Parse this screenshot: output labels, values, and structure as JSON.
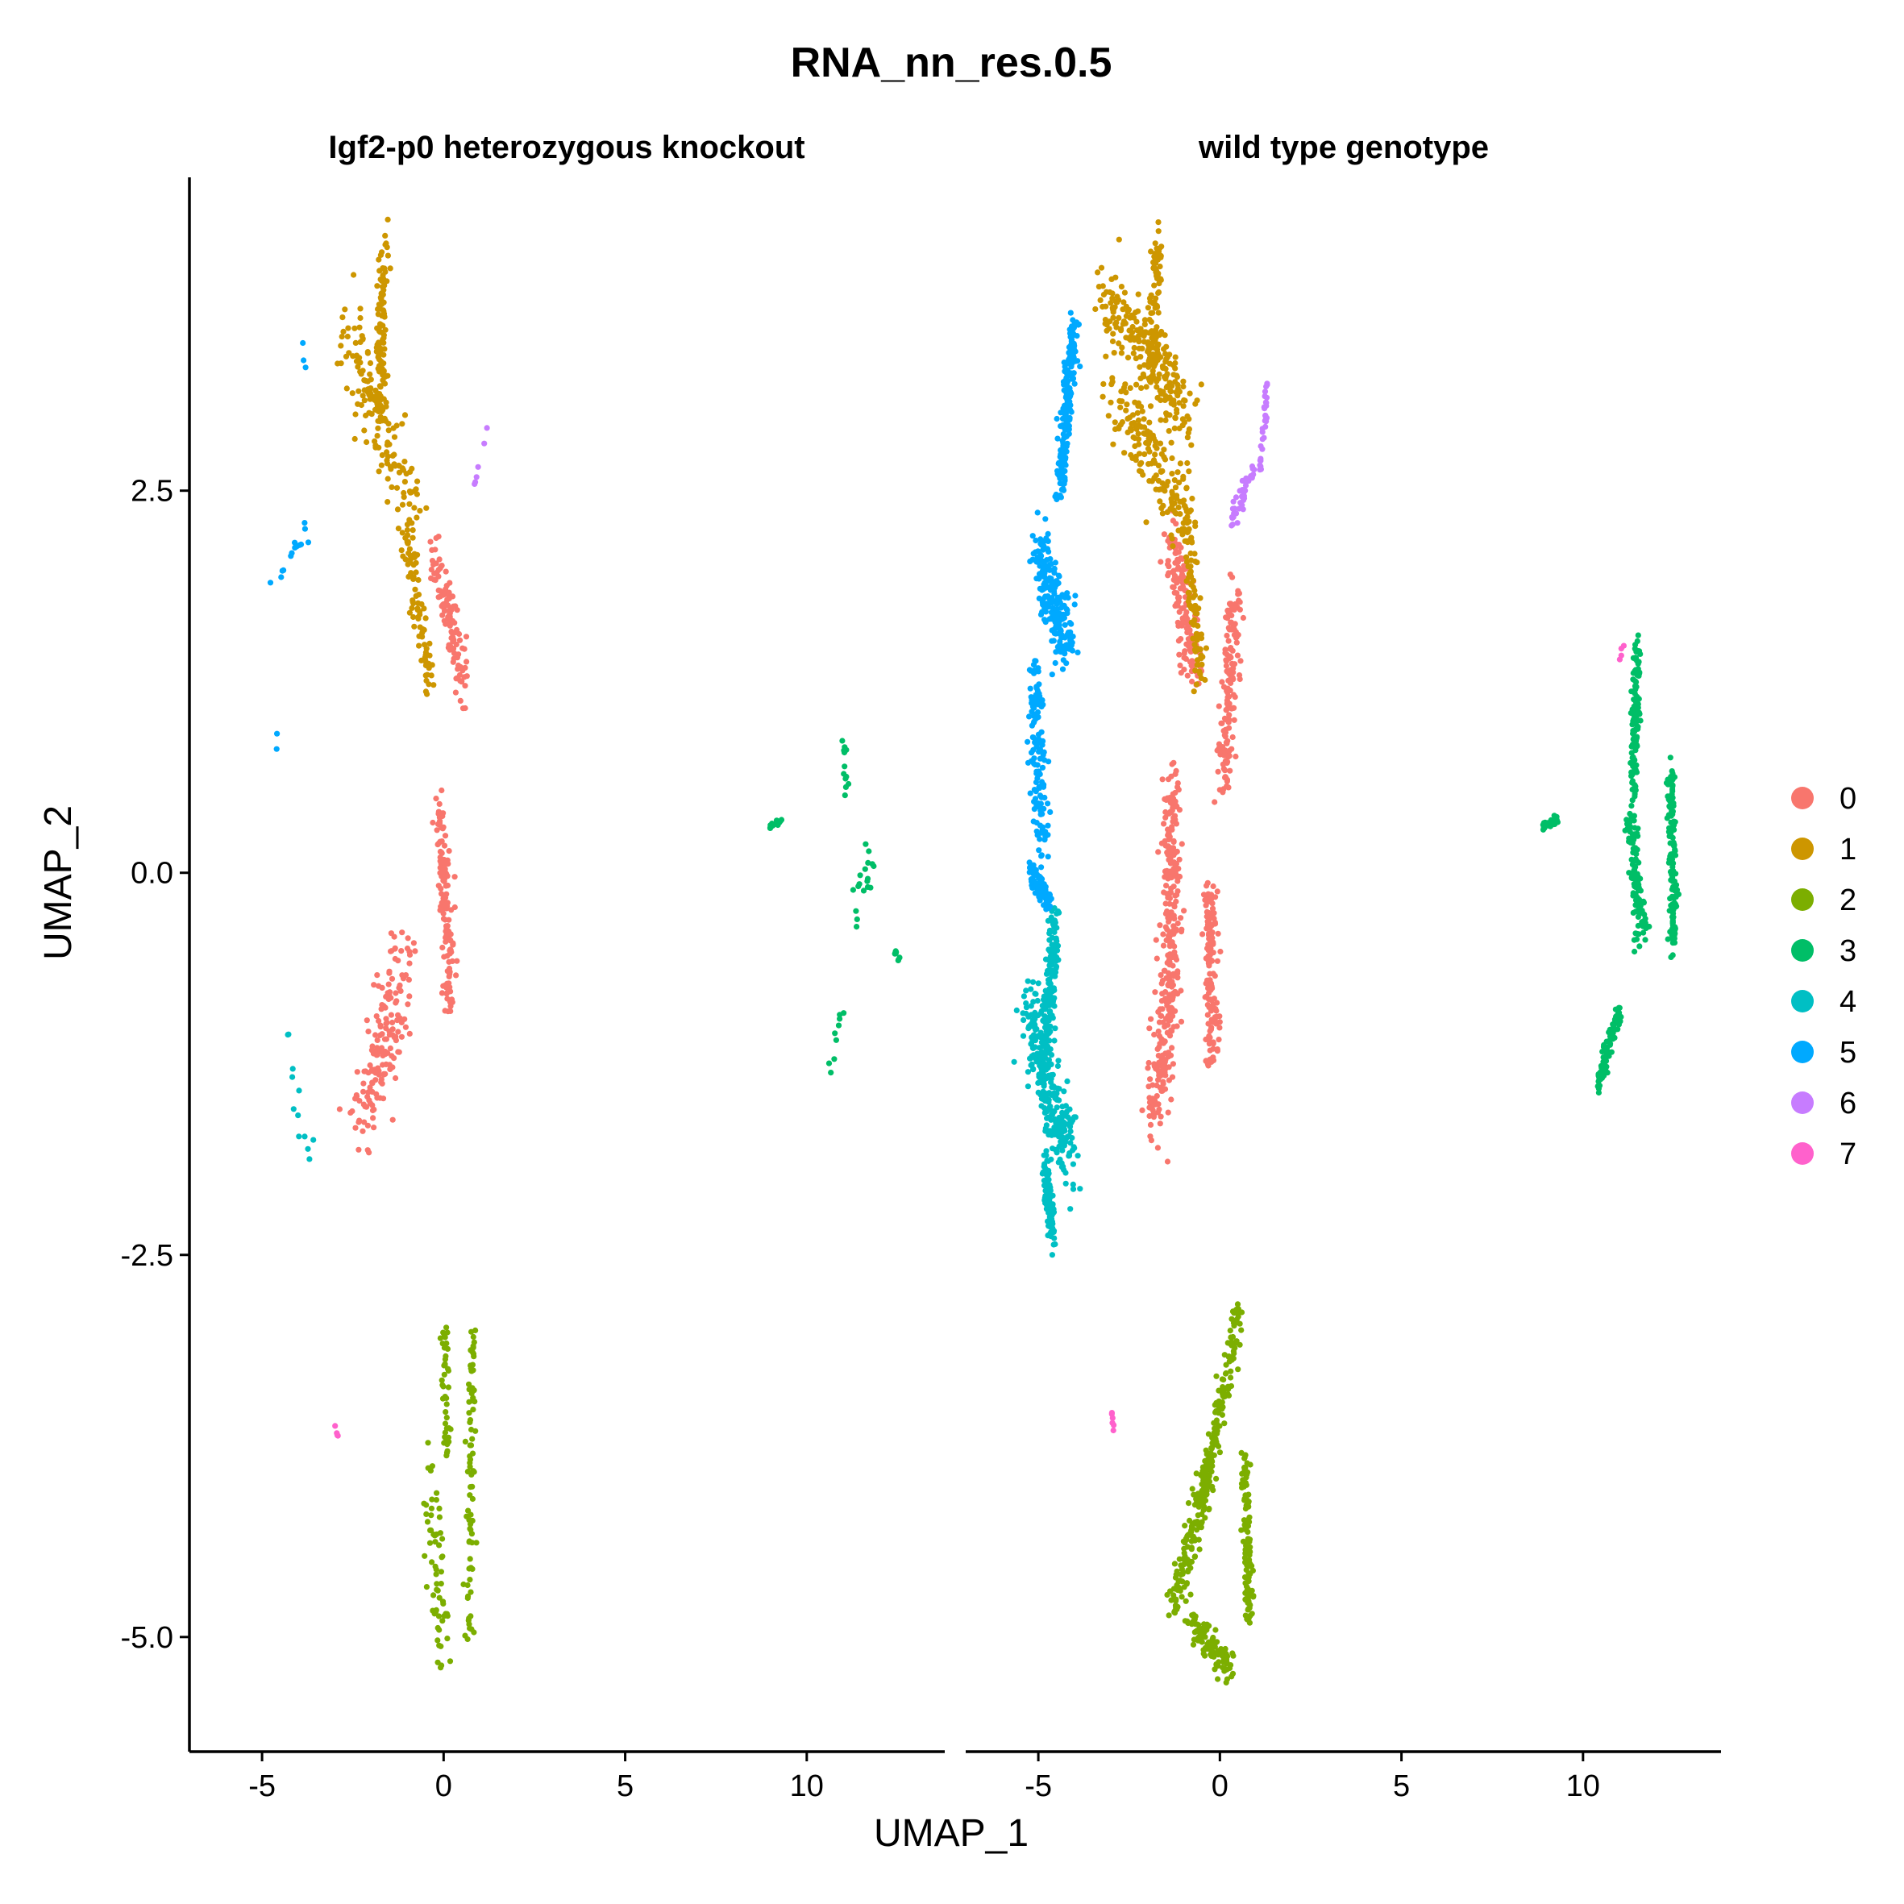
{
  "chart_data": {
    "type": "scatter",
    "title": "RNA_nn_res.0.5",
    "xlabel": "UMAP_1",
    "ylabel": "UMAP_2",
    "xlim": [
      -7,
      13.8
    ],
    "ylim": [
      -5.75,
      4.55
    ],
    "x_ticks": [
      -5,
      0,
      5,
      10
    ],
    "x_tick_labels": [
      "-5",
      "0",
      "5",
      "10"
    ],
    "y_ticks": [
      2.5,
      0.0,
      -2.5,
      -5.0
    ],
    "y_tick_labels": [
      "2.5",
      "0.0",
      "-2.5",
      "-5.0"
    ],
    "grid": false,
    "legend_position": "right",
    "legend": [
      {
        "label": "0",
        "color": "#F8766D"
      },
      {
        "label": "1",
        "color": "#CD9600"
      },
      {
        "label": "2",
        "color": "#7CAE00"
      },
      {
        "label": "3",
        "color": "#00BE67"
      },
      {
        "label": "4",
        "color": "#00BFC4"
      },
      {
        "label": "5",
        "color": "#00A9FF"
      },
      {
        "label": "6",
        "color": "#C77CFF"
      },
      {
        "label": "7",
        "color": "#FF61CC"
      }
    ],
    "panels": [
      {
        "title": "Igf2-p0 heterozygous knockout",
        "clusters": [
          {
            "name": "0",
            "n": 420,
            "segments": [
              [
                -0.3,
                2.1,
                0.6,
                1.2,
                0.35
              ],
              [
                -0.1,
                0.4,
                0.2,
                -0.8,
                0.35
              ],
              [
                -1.0,
                -0.6,
                -2.3,
                -1.6,
                0.8
              ]
            ]
          },
          {
            "name": "1",
            "n": 330,
            "segments": [
              [
                -1.6,
                4.2,
                -1.8,
                3.0,
                0.3
              ],
              [
                -2.6,
                3.5,
                -0.9,
                2.4,
                0.7
              ],
              [
                -1.0,
                2.3,
                -0.4,
                1.2,
                0.4
              ]
            ]
          },
          {
            "name": "2",
            "n": 190,
            "segments": [
              [
                0.0,
                -2.9,
                0.1,
                -3.8,
                0.2
              ],
              [
                0.8,
                -3.0,
                0.7,
                -5.0,
                0.2
              ],
              [
                -0.3,
                -3.8,
                -0.1,
                -5.1,
                0.5
              ]
            ]
          },
          {
            "name": "3",
            "n": 60,
            "segments": [
              [
                11.8,
                0.2,
                11.3,
                -0.4,
                0.35
              ],
              [
                11.0,
                -0.9,
                10.6,
                -1.3,
                0.2
              ],
              [
                11.0,
                0.9,
                11.1,
                0.5,
                0.1
              ],
              [
                8.9,
                0.3,
                9.3,
                0.35,
                0.05
              ],
              [
                12.4,
                -0.5,
                12.6,
                -0.6,
                0.05
              ]
            ]
          },
          {
            "name": "4",
            "n": 12,
            "segments": [
              [
                -4.2,
                -1.5,
                -3.3,
                -2.0,
                0.2
              ],
              [
                -4.3,
                -1.0,
                -4.0,
                -1.6,
                0.1
              ]
            ]
          },
          {
            "name": "5",
            "n": 20,
            "segments": [
              [
                -3.9,
                3.5,
                -3.8,
                3.2,
                0.08
              ],
              [
                -4.6,
                1.0,
                -4.6,
                0.7,
                0.05
              ],
              [
                -5.0,
                1.8,
                -3.8,
                2.2,
                0.2
              ]
            ]
          },
          {
            "name": "6",
            "n": 6,
            "segments": [
              [
                0.6,
                2.3,
                1.3,
                3.0,
                0.05
              ]
            ]
          },
          {
            "name": "7",
            "n": 4,
            "segments": [
              [
                -3.0,
                -3.6,
                -2.9,
                -3.7,
                0.02
              ]
            ]
          }
        ]
      },
      {
        "title": "wild type genotype",
        "clusters": [
          {
            "name": "0",
            "n": 780,
            "segments": [
              [
                -1.3,
                2.2,
                -0.7,
                1.3,
                0.5
              ],
              [
                0.4,
                1.8,
                0.1,
                0.6,
                0.4
              ],
              [
                -1.3,
                0.6,
                -1.4,
                -0.6,
                0.5
              ],
              [
                -1.3,
                -0.6,
                -1.8,
                -1.6,
                0.6
              ],
              [
                -0.3,
                -0.1,
                -0.2,
                -1.2,
                0.4
              ]
            ]
          },
          {
            "name": "1",
            "n": 560,
            "segments": [
              [
                -1.7,
                4.2,
                -1.9,
                3.2,
                0.3
              ],
              [
                -3.2,
                3.8,
                -0.8,
                3.0,
                0.5
              ],
              [
                -2.9,
                3.1,
                -0.8,
                2.3,
                0.6
              ],
              [
                -1.0,
                2.4,
                -0.5,
                1.2,
                0.3
              ]
            ]
          },
          {
            "name": "2",
            "n": 520,
            "segments": [
              [
                0.5,
                -2.9,
                -0.3,
                -3.9,
                0.3
              ],
              [
                -0.3,
                -3.9,
                -1.3,
                -4.8,
                0.35
              ],
              [
                0.7,
                -3.8,
                0.8,
                -4.9,
                0.2
              ],
              [
                -0.8,
                -4.9,
                0.3,
                -5.2,
                0.25
              ]
            ]
          },
          {
            "name": "3",
            "n": 520,
            "segments": [
              [
                11.5,
                1.5,
                11.4,
                0.5,
                0.2
              ],
              [
                12.4,
                0.7,
                12.5,
                -0.5,
                0.2
              ],
              [
                11.3,
                0.4,
                11.6,
                -0.4,
                0.3
              ],
              [
                11.0,
                -0.9,
                10.4,
                -1.4,
                0.15
              ],
              [
                8.9,
                0.3,
                9.3,
                0.35,
                0.05
              ]
            ]
          },
          {
            "name": "4",
            "n": 520,
            "segments": [
              [
                -4.5,
                -0.3,
                -4.9,
                -1.3,
                0.3
              ],
              [
                -5.3,
                -0.9,
                -4.2,
                -1.9,
                0.6
              ],
              [
                -4.8,
                -1.9,
                -4.6,
                -2.4,
                0.2
              ]
            ]
          },
          {
            "name": "5",
            "n": 640,
            "segments": [
              [
                -4.0,
                3.6,
                -4.4,
                2.5,
                0.3
              ],
              [
                -5.0,
                2.1,
                -4.2,
                1.5,
                0.5
              ],
              [
                -5.1,
                1.3,
                -4.9,
                0.2,
                0.4
              ],
              [
                -5.2,
                0.0,
                -4.7,
                -0.2,
                0.2
              ]
            ]
          },
          {
            "name": "6",
            "n": 70,
            "segments": [
              [
                1.3,
                3.2,
                1.1,
                2.6,
                0.1
              ],
              [
                0.9,
                2.6,
                0.3,
                2.3,
                0.15
              ]
            ]
          },
          {
            "name": "7",
            "n": 10,
            "segments": [
              [
                -3.0,
                -3.5,
                -2.9,
                -3.7,
                0.03
              ],
              [
                11.1,
                1.5,
                11.0,
                1.4,
                0.05
              ]
            ]
          }
        ]
      }
    ]
  }
}
